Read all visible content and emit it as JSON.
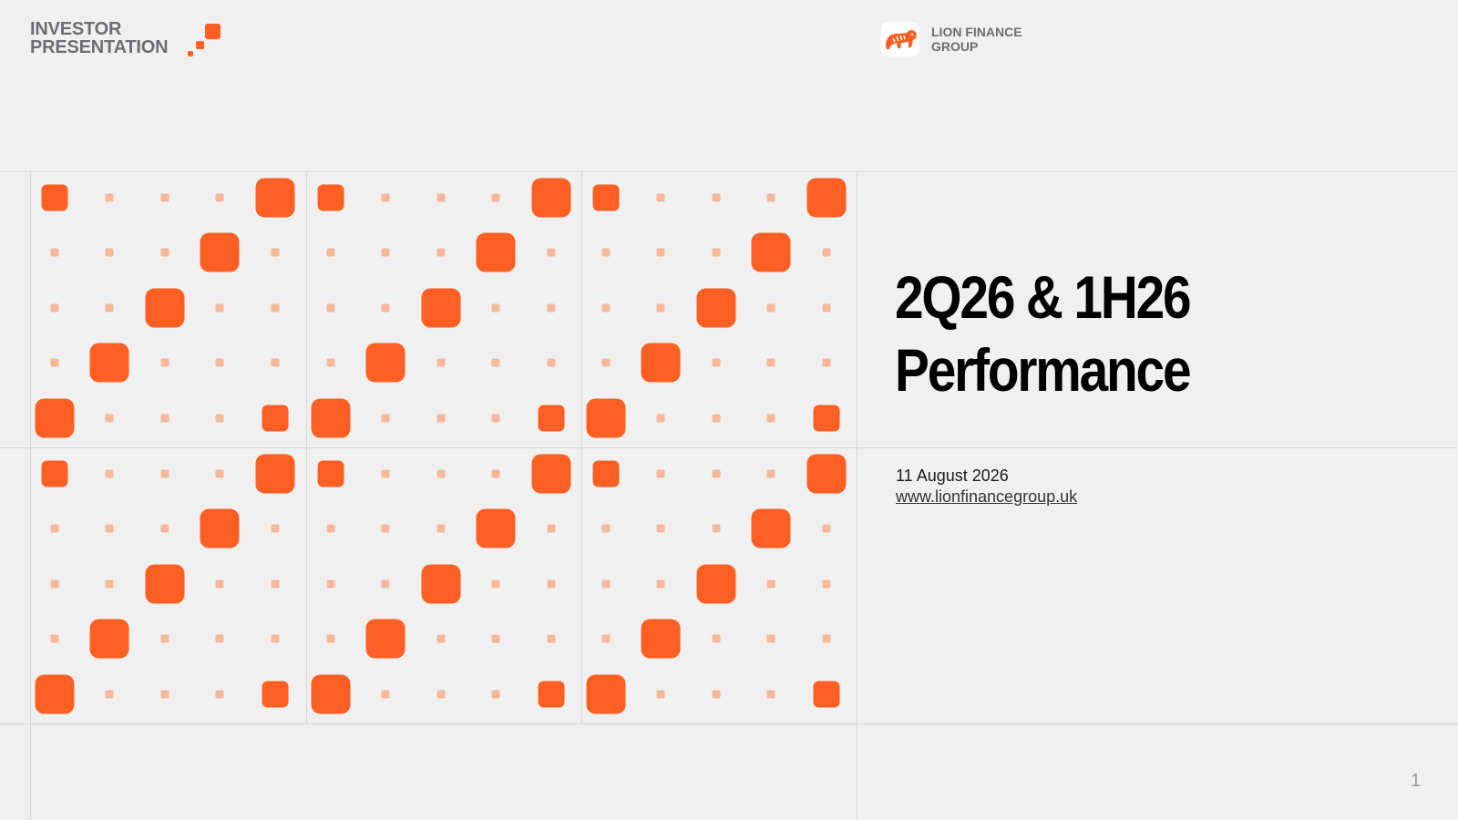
{
  "header": {
    "brand_line1": "INVESTOR",
    "brand_line2": "PRESENTATION",
    "company_line1": "LION FINANCE",
    "company_line2": "GROUP"
  },
  "slide": {
    "title_line1": "2Q26 & 1H26",
    "title_line2": "Performance",
    "date": "11 August 2026",
    "url": "www.lionfinancegroup.uk",
    "page_number": "1"
  },
  "colors": {
    "accent": "#ff5f22",
    "accent_light": "#f6b89a",
    "text_gray": "#6d6e71",
    "background": "#f0f0f0"
  },
  "icons": {
    "logo": "lion-icon",
    "brand_mark": "orange-squares-icon"
  }
}
